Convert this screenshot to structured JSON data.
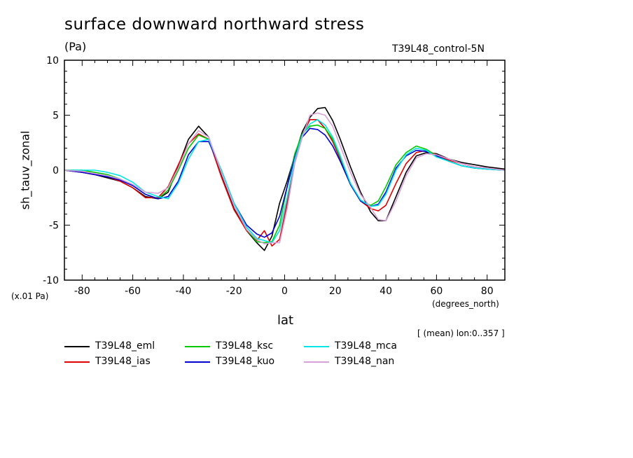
{
  "chart_data": {
    "type": "line",
    "title": "surface downward northward stress",
    "units": "(Pa)",
    "experiment": "T39L48_control-5N",
    "ylabel": "sh_tauv_zonal",
    "xlabel": "lat",
    "x_units": "(degrees_north)",
    "y_scale_note": "(x.01 Pa)",
    "average_note": "[ (mean) lon:0..357 ]",
    "xlim": [
      -87,
      87
    ],
    "ylim": [
      -10,
      10
    ],
    "x_ticks": [
      -80,
      -60,
      -40,
      -20,
      0,
      20,
      40,
      60,
      80
    ],
    "x_tick_labels": [
      "-80",
      "-60",
      "-40",
      "-20",
      "0",
      "20",
      "40",
      "60",
      "80"
    ],
    "y_ticks": [
      -10,
      -5,
      0,
      5,
      10
    ],
    "y_tick_labels": [
      "-10",
      "-5",
      "0",
      "5",
      "10"
    ],
    "x": [
      -87,
      -80,
      -75,
      -70,
      -65,
      -60,
      -55,
      -50,
      -46,
      -42,
      -38,
      -34,
      -30,
      -25,
      -20,
      -15,
      -11,
      -8,
      -5,
      -2,
      1,
      4,
      7,
      10,
      13,
      16,
      19,
      22,
      26,
      30,
      34,
      37,
      40,
      44,
      48,
      52,
      56,
      60,
      65,
      70,
      75,
      80,
      87
    ],
    "series": [
      {
        "name": "T39L48_eml",
        "color": "#000000",
        "values": [
          0.0,
          -0.2,
          -0.4,
          -0.7,
          -1.0,
          -1.6,
          -2.4,
          -2.6,
          -2.0,
          0.4,
          2.8,
          4.0,
          3.0,
          -0.5,
          -3.5,
          -5.5,
          -6.6,
          -7.3,
          -6.0,
          -3.0,
          -1.0,
          1.3,
          3.5,
          4.8,
          5.6,
          5.7,
          4.5,
          2.8,
          0.3,
          -2.0,
          -3.8,
          -4.6,
          -4.6,
          -2.4,
          -0.2,
          1.3,
          1.6,
          1.5,
          1.0,
          0.7,
          0.5,
          0.3,
          0.1
        ]
      },
      {
        "name": "T39L48_ias",
        "color": "#e00000",
        "values": [
          0.0,
          -0.2,
          -0.4,
          -0.6,
          -1.0,
          -1.6,
          -2.5,
          -2.5,
          -1.5,
          0.5,
          2.4,
          3.3,
          2.8,
          -0.6,
          -3.6,
          -5.5,
          -6.4,
          -5.5,
          -6.9,
          -6.3,
          -3.0,
          0.8,
          3.2,
          4.6,
          4.6,
          3.8,
          2.6,
          1.0,
          -1.3,
          -2.8,
          -3.5,
          -3.7,
          -3.2,
          -1.2,
          0.6,
          1.6,
          1.8,
          1.4,
          0.9,
          0.6,
          0.3,
          0.2,
          0.0
        ]
      },
      {
        "name": "T39L48_ksc",
        "color": "#00c800",
        "values": [
          0.0,
          0.0,
          -0.2,
          -0.4,
          -0.8,
          -1.4,
          -2.2,
          -2.6,
          -1.8,
          0.0,
          2.0,
          3.2,
          2.8,
          0.0,
          -3.0,
          -5.4,
          -6.5,
          -6.6,
          -6.5,
          -5.0,
          -1.5,
          1.5,
          3.3,
          4.0,
          4.1,
          3.8,
          2.8,
          1.2,
          -1.2,
          -2.8,
          -3.2,
          -2.8,
          -1.5,
          0.5,
          1.6,
          2.2,
          1.9,
          1.3,
          0.8,
          0.4,
          0.2,
          0.1,
          0.0
        ]
      },
      {
        "name": "T39L48_kuo",
        "color": "#0000d0",
        "values": [
          0.0,
          -0.2,
          -0.4,
          -0.6,
          -0.9,
          -1.4,
          -2.2,
          -2.6,
          -2.4,
          -1.0,
          1.4,
          2.6,
          2.6,
          0.0,
          -3.0,
          -5.0,
          -5.8,
          -6.1,
          -5.7,
          -4.2,
          -1.5,
          1.2,
          3.0,
          3.8,
          3.7,
          3.2,
          2.2,
          0.8,
          -1.3,
          -2.8,
          -3.3,
          -3.1,
          -2.0,
          0.2,
          1.3,
          1.8,
          1.7,
          1.3,
          0.8,
          0.4,
          0.2,
          0.1,
          0.0
        ]
      },
      {
        "name": "T39L48_mca",
        "color": "#00e6e6",
        "values": [
          0.0,
          0.0,
          0.0,
          -0.2,
          -0.5,
          -1.1,
          -2.0,
          -2.4,
          -2.6,
          -1.2,
          1.0,
          2.6,
          2.8,
          0.0,
          -3.0,
          -5.2,
          -6.2,
          -6.4,
          -6.6,
          -5.5,
          -2.5,
          1.0,
          3.2,
          4.2,
          4.6,
          4.1,
          3.0,
          1.3,
          -1.2,
          -2.7,
          -3.3,
          -3.2,
          -2.2,
          0.0,
          1.4,
          2.0,
          1.8,
          1.2,
          0.8,
          0.4,
          0.2,
          0.1,
          0.0
        ]
      },
      {
        "name": "T39L48_nan",
        "color": "#d8a0d8",
        "values": [
          0.0,
          -0.1,
          -0.3,
          -0.5,
          -0.8,
          -1.3,
          -2.0,
          -2.1,
          -1.6,
          0.2,
          2.4,
          3.6,
          3.0,
          -0.2,
          -3.2,
          -5.4,
          -6.3,
          -6.7,
          -6.6,
          -6.6,
          -3.5,
          0.6,
          3.0,
          5.0,
          5.2,
          5.0,
          4.0,
          2.2,
          -0.2,
          -2.2,
          -3.4,
          -4.5,
          -4.6,
          -2.8,
          -0.5,
          1.1,
          1.5,
          1.4,
          1.0,
          0.6,
          0.3,
          0.2,
          0.0
        ]
      }
    ]
  }
}
